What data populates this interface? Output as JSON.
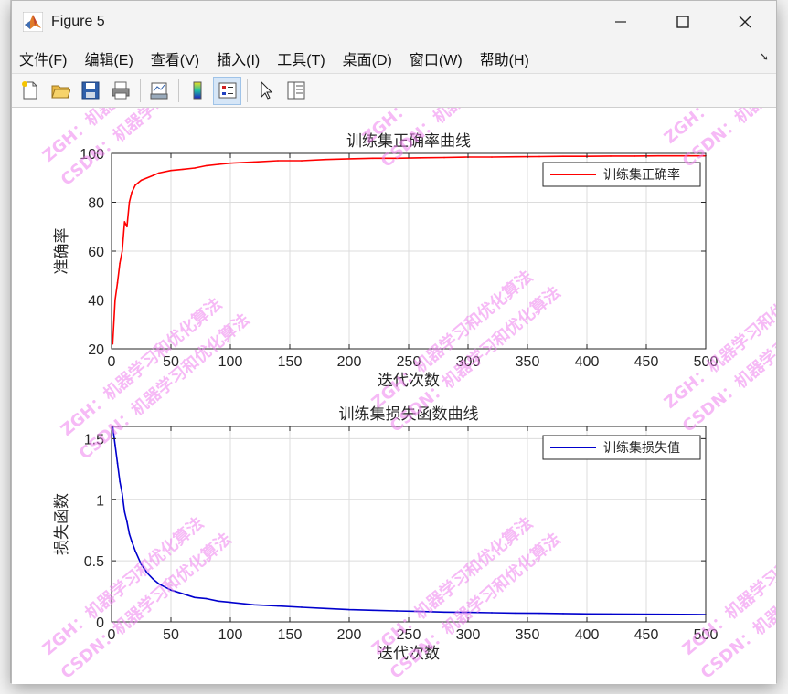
{
  "window": {
    "title": "Figure 5",
    "controls": {
      "minimize": "—",
      "maximize": "☐",
      "close": "✕"
    }
  },
  "menu": [
    "文件(F)",
    "编辑(E)",
    "查看(V)",
    "插入(I)",
    "工具(T)",
    "桌面(D)",
    "窗口(W)",
    "帮助(H)"
  ],
  "toolbar_icons": [
    "new-figure-icon",
    "open-file-icon",
    "save-icon",
    "print-icon",
    "link-plot-icon",
    "insert-colorbar-icon",
    "insert-legend-icon",
    "edit-plot-icon",
    "property-inspector-icon"
  ],
  "watermark": {
    "line1": "ZGH：机器学习和优化算法",
    "line2": "CSDN：机器学习和优化算法",
    "color": "#ee82ee"
  },
  "chart_data": [
    {
      "type": "line",
      "title": "训练集正确率曲线",
      "xlabel": "迭代次数",
      "ylabel": "准确率",
      "xlim": [
        0,
        500
      ],
      "ylim": [
        20,
        100
      ],
      "xticks": [
        0,
        50,
        100,
        150,
        200,
        250,
        300,
        350,
        400,
        450,
        500
      ],
      "yticks": [
        20,
        40,
        60,
        80,
        100
      ],
      "grid": true,
      "legend": "top-right",
      "series": [
        {
          "name": "训练集正确率",
          "color": "#ff0000",
          "x": [
            1,
            3,
            5,
            7,
            9,
            11,
            13,
            15,
            17,
            20,
            25,
            30,
            35,
            40,
            50,
            60,
            70,
            80,
            90,
            100,
            120,
            140,
            160,
            180,
            200,
            220,
            240,
            260,
            280,
            300,
            320,
            340,
            360,
            380,
            400,
            420,
            440,
            460,
            480,
            500
          ],
          "y": [
            22,
            40,
            47,
            55,
            60,
            72,
            70,
            80,
            84,
            87,
            89,
            90,
            91,
            92,
            93,
            93.5,
            94,
            95,
            95.5,
            96,
            96.5,
            97,
            97,
            97.5,
            97.8,
            98,
            98,
            98.2,
            98.3,
            98.5,
            98.5,
            98.6,
            98.7,
            98.8,
            98.8,
            98.9,
            98.9,
            99,
            99,
            99
          ]
        }
      ]
    },
    {
      "type": "line",
      "title": "训练集损失函数曲线",
      "xlabel": "迭代次数",
      "ylabel": "损失函数",
      "xlim": [
        0,
        500
      ],
      "ylim": [
        0,
        1.6
      ],
      "xticks": [
        0,
        50,
        100,
        150,
        200,
        250,
        300,
        350,
        400,
        450,
        500
      ],
      "yticks": [
        0,
        0.5,
        1,
        1.5
      ],
      "grid": true,
      "legend": "top-right",
      "series": [
        {
          "name": "训练集损失值",
          "color": "#0000cd",
          "x": [
            1,
            3,
            5,
            7,
            9,
            11,
            13,
            15,
            17,
            20,
            25,
            30,
            35,
            40,
            50,
            60,
            70,
            80,
            90,
            100,
            120,
            140,
            160,
            180,
            200,
            220,
            240,
            260,
            280,
            300,
            320,
            340,
            360,
            380,
            400,
            420,
            440,
            460,
            480,
            500
          ],
          "y": [
            1.6,
            1.45,
            1.3,
            1.15,
            1.05,
            0.9,
            0.82,
            0.72,
            0.66,
            0.58,
            0.47,
            0.4,
            0.35,
            0.31,
            0.26,
            0.23,
            0.2,
            0.19,
            0.17,
            0.16,
            0.14,
            0.13,
            0.12,
            0.11,
            0.1,
            0.095,
            0.09,
            0.085,
            0.08,
            0.078,
            0.075,
            0.072,
            0.07,
            0.068,
            0.065,
            0.064,
            0.063,
            0.062,
            0.061,
            0.06
          ]
        }
      ]
    }
  ]
}
